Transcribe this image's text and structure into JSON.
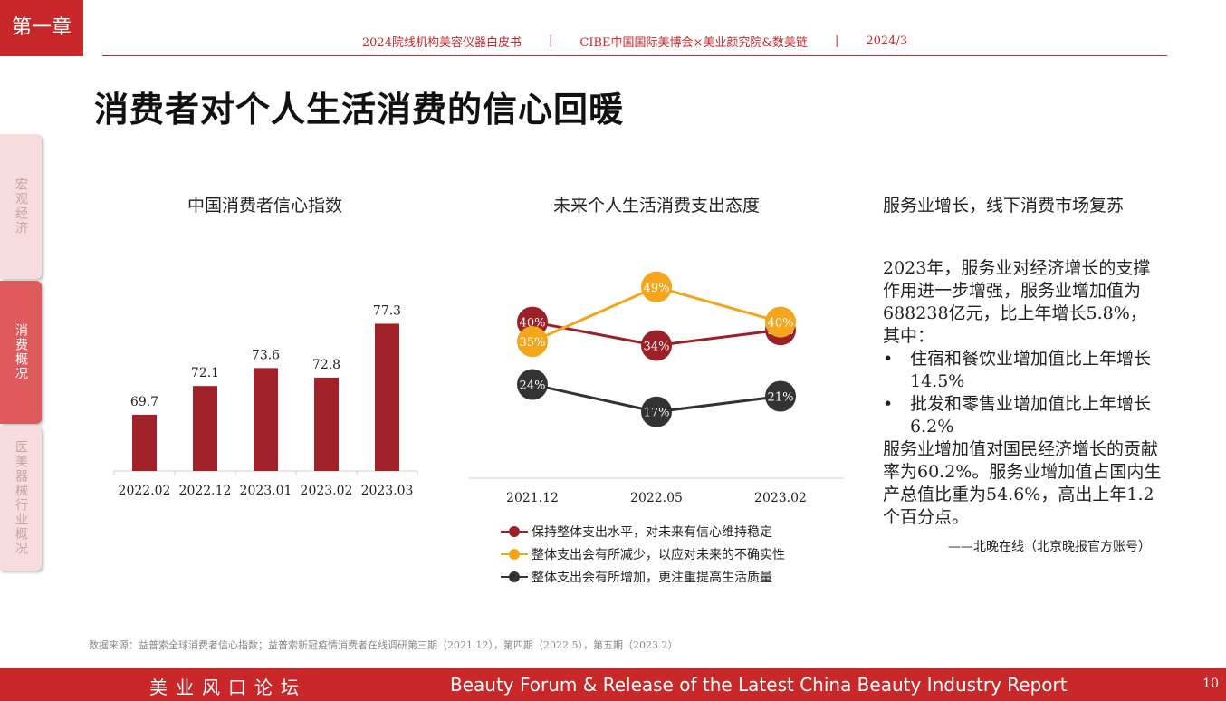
{
  "chapter": "第一章",
  "header": {
    "left": "2024院线机构美容仪器白皮书",
    "sep": "|",
    "middle": "CIBE中国国际美博会×美业颜究院&数美链",
    "right": "2024/3"
  },
  "page_title": "消费者对个人生活消费的信心回暖",
  "side_nav": [
    {
      "label": "宏观经济",
      "active": false
    },
    {
      "label": "消费概况",
      "active": true
    },
    {
      "label": "医美器械行业概况",
      "active": false
    }
  ],
  "colors": {
    "brand": "#c8282a",
    "bar": "#a12129",
    "series_keep": "#9b2027",
    "series_reduce": "#f3a51b",
    "series_increase": "#333333"
  },
  "chart_data": [
    {
      "type": "bar",
      "title": "中国消费者信心指数",
      "categories": [
        "2022.02",
        "2022.12",
        "2023.01",
        "2023.02",
        "2023.03"
      ],
      "values": [
        69.7,
        72.1,
        73.6,
        72.8,
        77.3
      ],
      "data_labels": [
        "69.7",
        "72.1",
        "73.6",
        "72.8",
        "77.3"
      ],
      "ylim": [
        65,
        79
      ],
      "grid": false
    },
    {
      "type": "line",
      "title": "未来个人生活消费支出态度",
      "categories": [
        "2021.12",
        "2022.05",
        "2023.02"
      ],
      "series": [
        {
          "name": "保持整体支出水平，对未来有信心维持稳定",
          "values": [
            40,
            34,
            38
          ],
          "labels": [
            "40%",
            "34%",
            "38%"
          ],
          "color": "#9b2027"
        },
        {
          "name": "整体支出会有所减少，以应对未来的不确实性",
          "values": [
            35,
            49,
            40
          ],
          "labels": [
            "35%",
            "49%",
            "40%"
          ],
          "color": "#f3a51b"
        },
        {
          "name": "整体支出会有所增加，更注重提高生活质量",
          "values": [
            24,
            17,
            21
          ],
          "labels": [
            "24%",
            "17%",
            "21%"
          ],
          "color": "#333333"
        }
      ],
      "ylim": [
        0,
        58
      ],
      "legend": "bottom",
      "grid": false
    }
  ],
  "right_panel": {
    "title": "服务业增长，线下消费市场复苏",
    "para1": "2023年，服务业对经济增长的支撑作用进一步增强，服务业增加值为688238亿元，比上年增长5.8%，其中：",
    "bullet_symbol": "•",
    "bullets": [
      "住宿和餐饮业增加值比上年增长14.5%",
      "批发和零售业增加值比上年增长6.2%"
    ],
    "para2": "服务业增加值对国民经济增长的贡献率为60.2%。服务业增加值占国内生产总值比重为54.6%，高出上年1.2个百分点。",
    "quote": "——北晚在线（北京晚报官方账号）"
  },
  "source": "数据来源：益普索全球消费者信心指数；益普索新冠疫情消费者在线调研第三期（2021.12），第四期（2022.5），第五期（2023.2）",
  "footer": {
    "left": "美业风口论坛",
    "middle": "Beauty Forum & Release of the Latest China Beauty Industry Report",
    "page": "10"
  }
}
